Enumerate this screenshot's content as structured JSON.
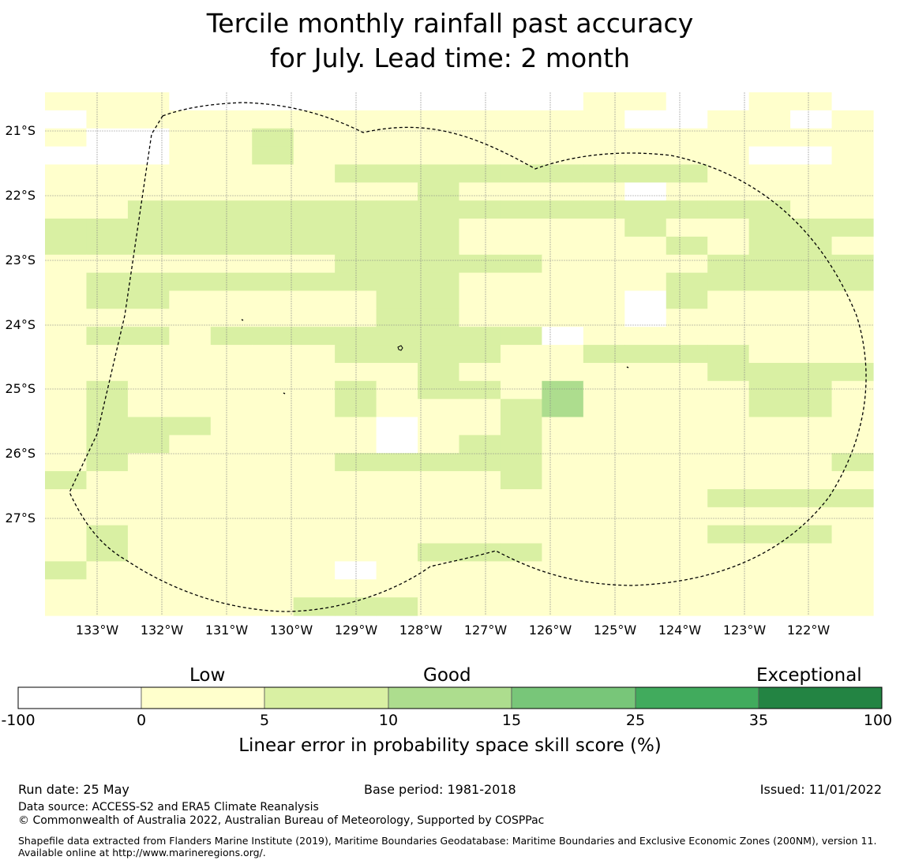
{
  "title_line1": "Tercile monthly rainfall past accuracy",
  "title_line2": "for July. Lead time: 2 month",
  "lat_labels": [
    "21°S",
    "22°S",
    "23°S",
    "24°S",
    "25°S",
    "26°S",
    "27°S"
  ],
  "lon_labels": [
    "133°W",
    "132°W",
    "131°W",
    "130°W",
    "129°W",
    "128°W",
    "127°W",
    "126°W",
    "125°W",
    "124°W",
    "123°W",
    "122°W"
  ],
  "colors": {
    "c0": "#ffffff",
    "c1": "#ffffcc",
    "c2": "#d9f0a3",
    "c3": "#addd8e",
    "c4": "#78c679",
    "c5": "#41ab5d",
    "c6": "#238443"
  },
  "grid_codes": [
    "11100000000001100110",
    "01111111111111001101",
    "10011211111111111111",
    "00011211111111111001",
    "11111112222222221111",
    "11111111121111011111",
    "11222222222222222211",
    "22222222221111211222",
    "22222222221111121221",
    "11111112222211112222",
    "12222222221111122222",
    "12211111221111021111",
    "11111111221111011111",
    "12212222222201111111",
    "11111112222112222111",
    "11111111121111112222",
    "12111112122131111221",
    "12111112111231111221",
    "12221111011211111111",
    "12211111012211111111",
    "12111112222211111112",
    "21111111111211111111",
    "11111111111111112222",
    "11111111111111111111",
    "12111111111111112221",
    "12111111122211111111",
    "21111110111111111111",
    "11111111111111111111",
    "11111122211111111111"
  ],
  "colorbar": {
    "categories": [
      "Low",
      "Good",
      "Exceptional"
    ],
    "ticks": [
      "-100",
      "0",
      "5",
      "10",
      "15",
      "25",
      "35",
      "100"
    ],
    "label": "Linear error in probability space skill score (%)"
  },
  "footer": {
    "run_date": "Run date: 25 May",
    "base_period": "Base period: 1981-2018",
    "issued": "Issued: 11/01/2022",
    "data_source": "Data source: ACCESS-S2 and ERA5 Climate Reanalysis",
    "copyright": "© Commonwealth of Australia 2022, Australian Bureau of Meteorology, Supported by COSPPac",
    "shapefile": "Shapefile data extracted from Flanders Marine Institute (2019), Maritime Boundaries Geodatabase: Maritime Boundaries and Exclusive Economic Zones (200NM), version 11. Available online at http://www.marineregions.org/."
  }
}
